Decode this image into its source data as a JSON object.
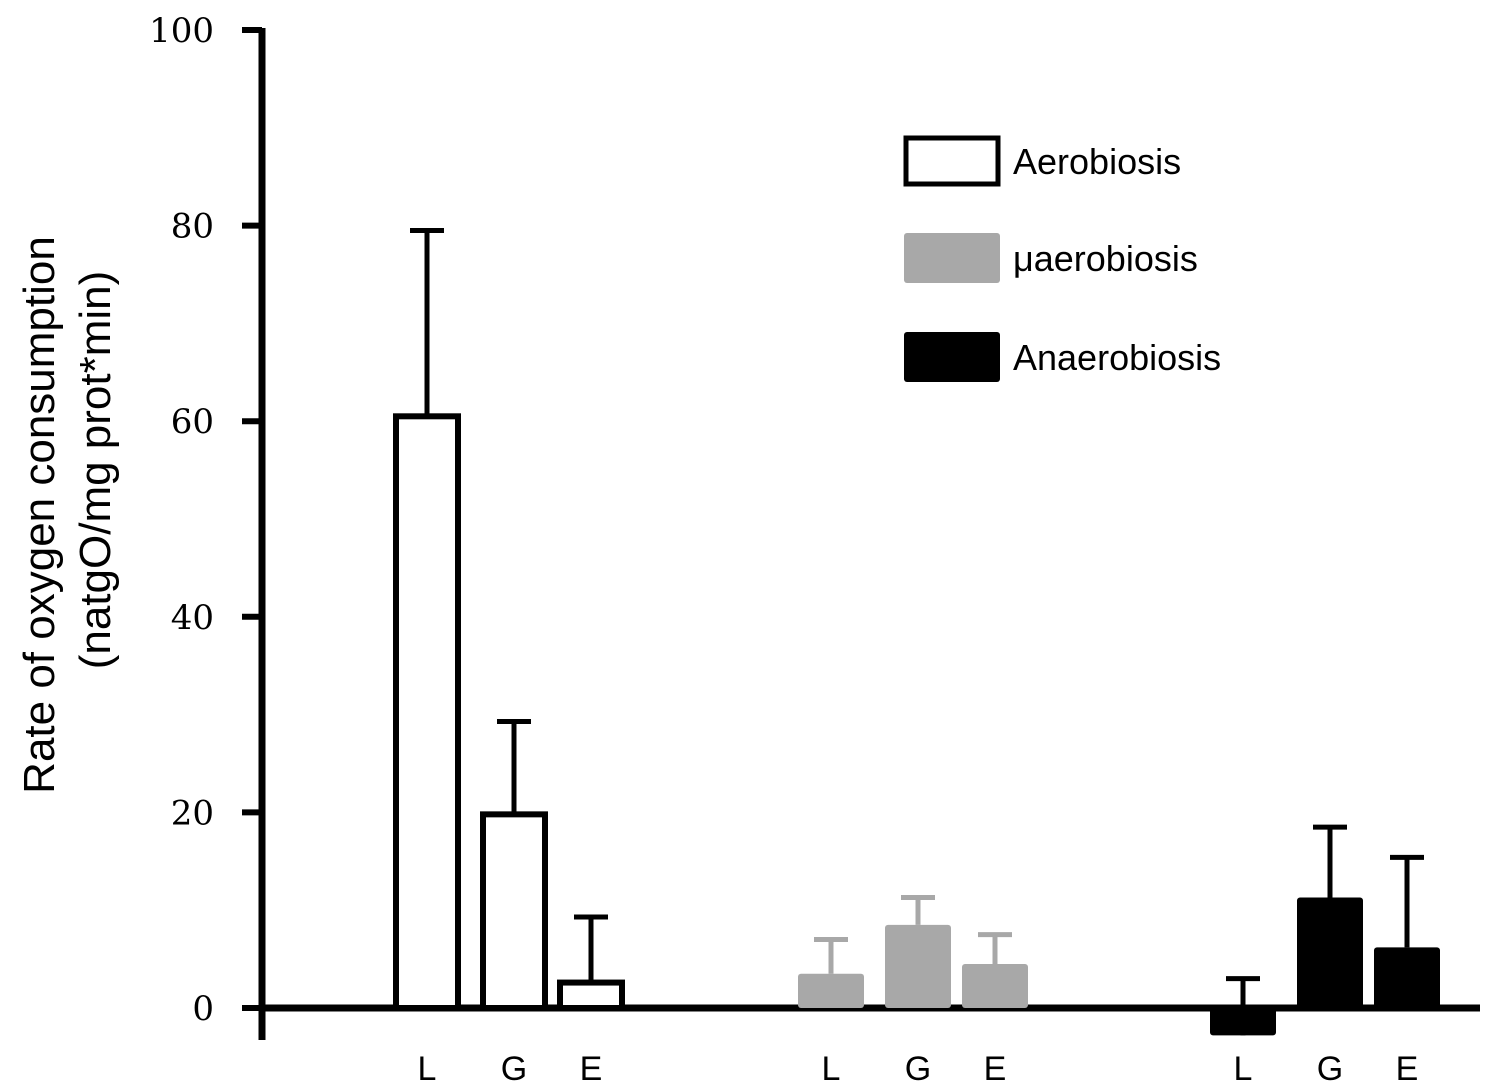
{
  "chart_data": {
    "type": "bar",
    "title": "",
    "xlabel": "",
    "ylabel_lines": [
      "Rate of oxygen consumption",
      "(natgO/mg prot*min)"
    ],
    "ylim": [
      0,
      100
    ],
    "yticks": [
      0,
      20,
      40,
      60,
      80,
      100
    ],
    "grid": false,
    "legend_position": "top-right",
    "categories": [
      "L",
      "G",
      "E"
    ],
    "series": [
      {
        "name": "Aerobiosis",
        "color": "#ffffff",
        "stroke": "#000000",
        "values": [
          60.5,
          19.8,
          2.6
        ],
        "errors": [
          19.0,
          9.5,
          6.7
        ]
      },
      {
        "name": "μaerobiosis",
        "color": "#a8a8a8",
        "stroke": "#a8a8a8",
        "values": [
          3.5,
          8.5,
          4.5
        ],
        "errors": [
          3.5,
          2.8,
          3.0
        ]
      },
      {
        "name": "Anaerobiosis",
        "color": "#000000",
        "stroke": "#000000",
        "values": [
          -2.8,
          11.3,
          6.2
        ],
        "errors": [
          5.8,
          7.2,
          9.2
        ]
      }
    ]
  }
}
